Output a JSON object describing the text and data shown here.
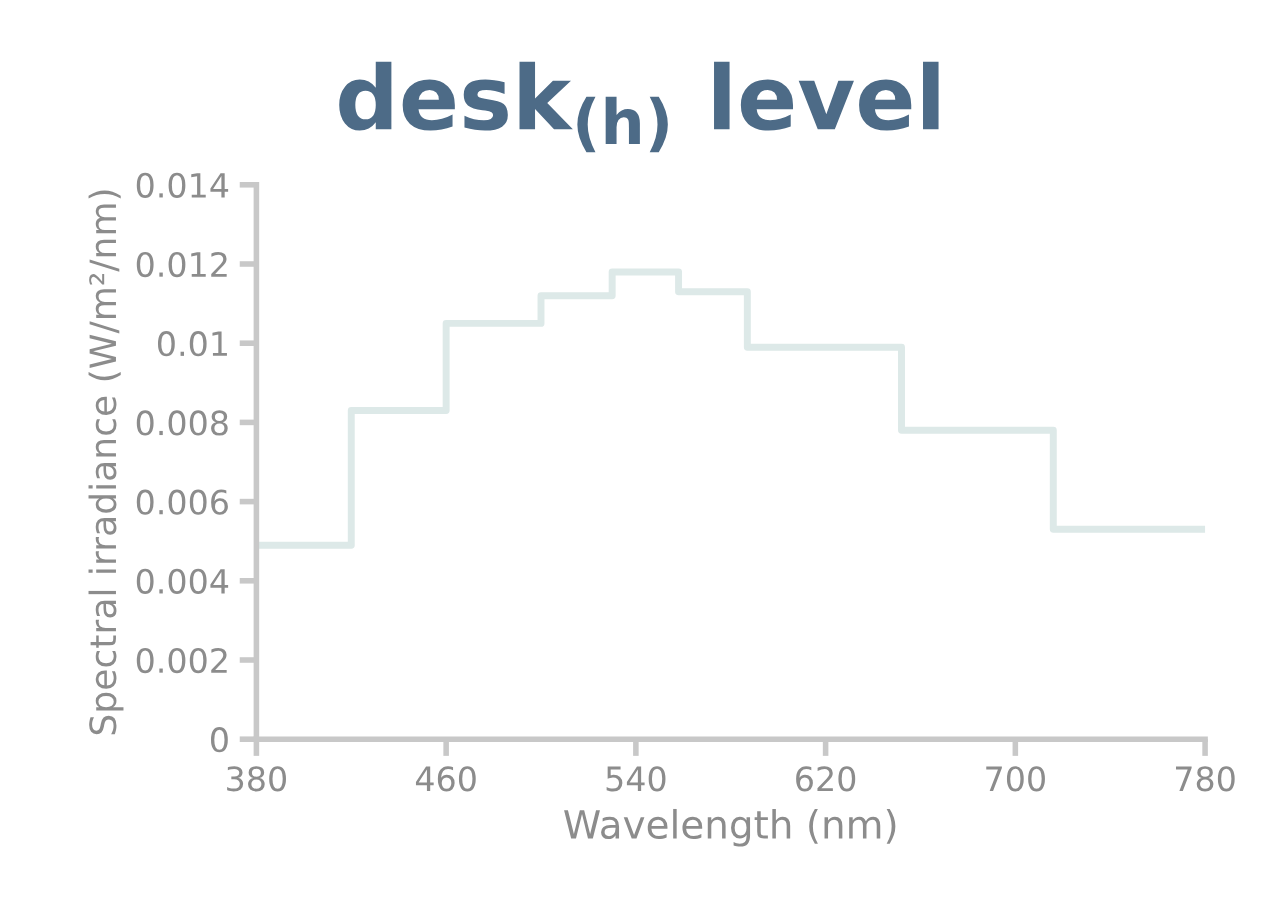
{
  "chart_data": {
    "type": "step",
    "xlabel": "Wavelength (nm)",
    "ylabel": "Spectral irradiance (W/m²/nm)",
    "x": [
      380,
      420,
      460,
      500,
      530,
      558,
      587,
      652,
      716,
      780
    ],
    "series": [
      {
        "color": "#dde9e8",
        "values": [
          0.0049,
          0.0083,
          0.0105,
          0.0112,
          0.0118,
          0.0113,
          0.0099,
          0.0078,
          0.0053,
          0.0053
        ]
      }
    ],
    "xlim": [
      380,
      780
    ],
    "ylim": [
      0,
      0.014
    ],
    "xticks": [
      380,
      460,
      540,
      620,
      700,
      780
    ],
    "yticks": [
      0,
      0.002,
      0.004,
      0.006,
      0.008,
      0.01,
      0.012,
      0.014
    ],
    "grid": false,
    "legend": false,
    "annotations": [
      "desk$_{(h)}$ level"
    ]
  }
}
